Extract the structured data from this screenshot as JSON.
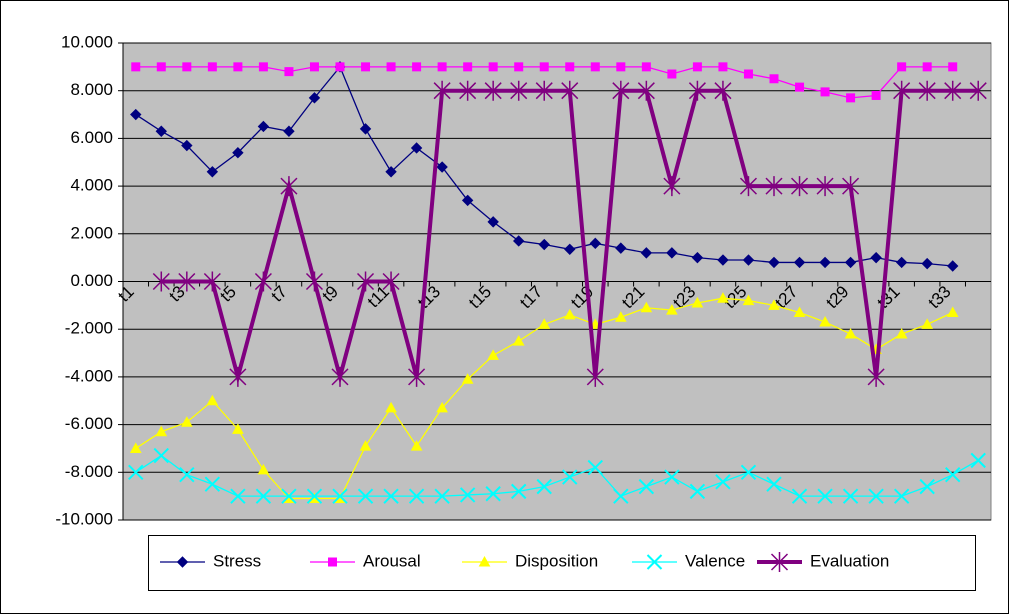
{
  "chart_data": {
    "type": "line",
    "categories": [
      "t1",
      null,
      "t3",
      null,
      "t5",
      null,
      "t7",
      null,
      "t9",
      null,
      "t11",
      null,
      "t13",
      null,
      "t15",
      null,
      "t17",
      null,
      "t19",
      null,
      "t21",
      null,
      "t23",
      null,
      "t25",
      null,
      "t27",
      null,
      "t29",
      null,
      "t31",
      null,
      "t33",
      null
    ],
    "series": [
      {
        "name": "Stress",
        "color": "#000080",
        "marker": "diamond",
        "values": [
          7.0,
          6.3,
          5.7,
          4.6,
          5.4,
          6.5,
          6.3,
          7.7,
          9.0,
          6.4,
          4.6,
          5.6,
          4.8,
          3.4,
          2.5,
          1.7,
          1.55,
          1.35,
          1.6,
          1.4,
          1.2,
          1.2,
          1.0,
          0.9,
          0.9,
          0.8,
          0.8,
          0.8,
          0.8,
          1.0,
          0.8,
          0.75,
          0.65,
          null
        ]
      },
      {
        "name": "Arousal",
        "color": "#ff00ff",
        "marker": "square",
        "values": [
          9,
          9,
          9,
          9,
          9,
          9,
          8.8,
          9,
          9,
          9,
          9,
          9,
          9,
          9,
          9,
          9,
          9,
          9,
          9,
          9,
          9,
          8.7,
          9,
          9,
          8.7,
          8.5,
          8.15,
          7.95,
          7.7,
          7.8,
          9,
          9,
          9,
          null
        ]
      },
      {
        "name": "Disposition",
        "color": "#ffff00",
        "marker": "triangle",
        "values": [
          -7.0,
          -6.3,
          -5.9,
          -5.0,
          -6.2,
          -7.9,
          -9.1,
          -9.1,
          -9.1,
          -6.9,
          -5.3,
          -6.9,
          -5.3,
          -4.1,
          -3.1,
          -2.5,
          -1.8,
          -1.4,
          -1.8,
          -1.5,
          -1.1,
          -1.2,
          -0.9,
          -0.7,
          -0.8,
          -1.0,
          -1.3,
          -1.7,
          -2.2,
          -2.85,
          -2.2,
          -1.8,
          -1.3,
          null
        ]
      },
      {
        "name": "Valence",
        "color": "#00ffff",
        "marker": "x",
        "values": [
          -8.0,
          -7.3,
          -8.1,
          -8.5,
          -9.0,
          -9.0,
          -9.0,
          -9.0,
          -9.0,
          -9.0,
          -9.0,
          -9.0,
          -9.0,
          -8.95,
          -8.9,
          -8.8,
          -8.6,
          -8.2,
          -7.8,
          -9.0,
          -8.6,
          -8.2,
          -8.8,
          -8.4,
          -8.0,
          -8.5,
          -9.0,
          -9.0,
          -9.0,
          -9.0,
          -9.0,
          -8.6,
          -8.1,
          -7.5
        ]
      },
      {
        "name": "Evaluation",
        "color": "#800080",
        "marker": "star",
        "width": 4,
        "values": [
          null,
          0,
          0,
          0,
          -4,
          0,
          4,
          0,
          -4,
          0,
          0,
          -4,
          8,
          8,
          8,
          8,
          8,
          8,
          -4,
          8,
          8,
          4,
          8,
          8,
          4,
          4,
          4,
          4,
          4,
          -4,
          8,
          8,
          8,
          8
        ]
      }
    ],
    "ylim": [
      -10,
      10
    ],
    "yticks": [
      {
        "value": -10,
        "label": "-10.000"
      },
      {
        "value": -8,
        "label": "-8.000"
      },
      {
        "value": -6,
        "label": "-6.000"
      },
      {
        "value": -4,
        "label": "-4.000"
      },
      {
        "value": -2,
        "label": "-2.000"
      },
      {
        "value": 0,
        "label": "0.000"
      },
      {
        "value": 2,
        "label": "2.000"
      },
      {
        "value": 4,
        "label": "4.000"
      },
      {
        "value": 6,
        "label": "6.000"
      },
      {
        "value": 8,
        "label": "8.000"
      },
      {
        "value": 10,
        "label": "10.000"
      }
    ],
    "grid": true,
    "legend": "bottom",
    "background": "#c0c0c0"
  }
}
